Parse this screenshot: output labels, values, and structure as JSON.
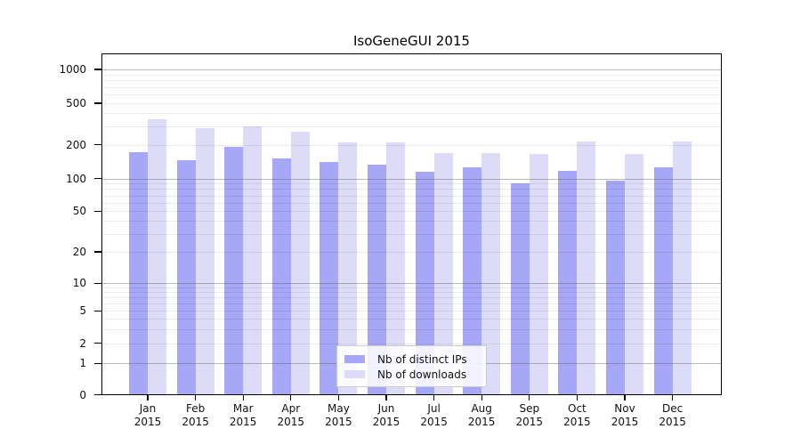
{
  "chart_data": {
    "type": "bar",
    "title": "IsoGeneGUI 2015",
    "yscale": "symlog",
    "grid": true,
    "legend_position": "lower-center",
    "ylim": [
      0,
      1400
    ],
    "yticks": [
      1000,
      500,
      200,
      100,
      50,
      20,
      10,
      5,
      2,
      1,
      0
    ],
    "categories": [
      {
        "month": "Jan",
        "year": "2015"
      },
      {
        "month": "Feb",
        "year": "2015"
      },
      {
        "month": "Mar",
        "year": "2015"
      },
      {
        "month": "Apr",
        "year": "2015"
      },
      {
        "month": "May",
        "year": "2015"
      },
      {
        "month": "Jun",
        "year": "2015"
      },
      {
        "month": "Jul",
        "year": "2015"
      },
      {
        "month": "Aug",
        "year": "2015"
      },
      {
        "month": "Sep",
        "year": "2015"
      },
      {
        "month": "Oct",
        "year": "2015"
      },
      {
        "month": "Nov",
        "year": "2015"
      },
      {
        "month": "Dec",
        "year": "2015"
      }
    ],
    "series": [
      {
        "name": "Nb of distinct IPs",
        "color": "#a7a7f7",
        "values": [
          172,
          146,
          193,
          152,
          141,
          134,
          115,
          125,
          90,
          117,
          95,
          127
        ]
      },
      {
        "name": "Nb of downloads",
        "color": "#dcdcf9",
        "values": [
          348,
          287,
          298,
          265,
          210,
          210,
          170,
          170,
          165,
          214,
          165,
          215
        ]
      }
    ]
  }
}
